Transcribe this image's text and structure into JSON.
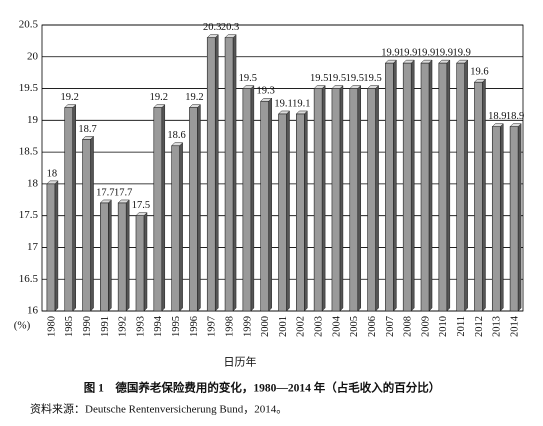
{
  "chart_data": {
    "type": "bar",
    "categories": [
      "1980",
      "1985",
      "1990",
      "1991",
      "1992",
      "1993",
      "1994",
      "1995",
      "1996",
      "1997",
      "1998",
      "1999",
      "2000",
      "2001",
      "2002",
      "2003",
      "2004",
      "2005",
      "2006",
      "2007",
      "2008",
      "2009",
      "2010",
      "2011",
      "2012",
      "2013",
      "2014"
    ],
    "values": [
      18,
      19.2,
      18.7,
      17.7,
      17.7,
      17.5,
      19.2,
      18.6,
      19.2,
      20.3,
      20.3,
      19.5,
      19.3,
      19.1,
      19.1,
      19.5,
      19.5,
      19.5,
      19.5,
      19.9,
      19.9,
      19.9,
      19.9,
      19.9,
      19.6,
      18.9,
      18.9
    ],
    "color": "#9a9a9a",
    "ylim": [
      16,
      20.5
    ],
    "yticks": [
      16,
      16.5,
      17,
      17.5,
      18,
      18.5,
      19,
      19.5,
      20,
      20.5
    ],
    "grid": true,
    "y_label": "(%)",
    "x_label": "日历年",
    "caption": "图 1　德国养老保险费用的变化，1980—2014 年（占毛收入的百分比）",
    "source": "资料来源：Deutsche Rentenversicherung Bund，2014。"
  }
}
